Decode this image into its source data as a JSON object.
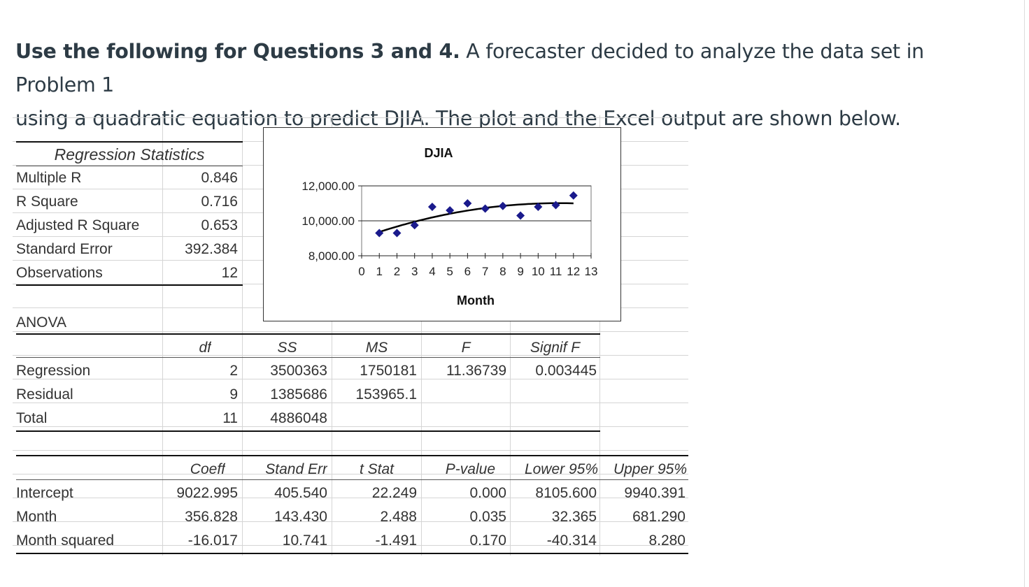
{
  "intro": {
    "bold": "Use the following for Questions 3 and 4.",
    "line1_rest": " A forecaster decided to analyze the data set in Problem 1",
    "line2": "using a quadratic equation to predict DJIA. The plot and the Excel output are shown below."
  },
  "regression_statistics": {
    "title": "Regression Statistics",
    "rows": [
      {
        "label": "Multiple R",
        "value": "0.846"
      },
      {
        "label": "R Square",
        "value": "0.716"
      },
      {
        "label": "Adjusted R Square",
        "value": "0.653"
      },
      {
        "label": "Standard Error",
        "value": "392.384"
      },
      {
        "label": "Observations",
        "value": "12"
      }
    ]
  },
  "anova": {
    "title": "ANOVA",
    "headers": [
      "df",
      "SS",
      "MS",
      "F",
      "Signif F"
    ],
    "rows": [
      {
        "label": "Regression",
        "df": "2",
        "ss": "3500363",
        "ms": "1750181",
        "f": "11.36739",
        "signif": "0.003445"
      },
      {
        "label": "Residual",
        "df": "9",
        "ss": "1385686",
        "ms": "153965.1",
        "f": "",
        "signif": ""
      },
      {
        "label": "Total",
        "df": "11",
        "ss": "4886048",
        "ms": "",
        "f": "",
        "signif": ""
      }
    ]
  },
  "coefficients": {
    "headers": [
      "Coeff",
      "Stand Err",
      "t Stat",
      "P-value",
      "Lower 95%",
      "Upper 95%"
    ],
    "rows": [
      {
        "label": "Intercept",
        "coeff": "9022.995",
        "se": "405.540",
        "t": "22.249",
        "p": "0.000",
        "lower": "8105.600",
        "upper": "9940.391"
      },
      {
        "label": "Month",
        "coeff": "356.828",
        "se": "143.430",
        "t": "2.488",
        "p": "0.035",
        "lower": "32.365",
        "upper": "681.290"
      },
      {
        "label": "Month squared",
        "coeff": "-16.017",
        "se": "10.741",
        "t": "-1.491",
        "p": "0.170",
        "lower": "-40.314",
        "upper": "8.280"
      }
    ]
  },
  "chart_data": {
    "type": "scatter",
    "title": "DJIA",
    "xlabel": "Month",
    "ylabel": "",
    "x_ticks": [
      0,
      1,
      2,
      3,
      4,
      5,
      6,
      7,
      8,
      9,
      10,
      11,
      12,
      13
    ],
    "y_ticks": [
      "8,000.00",
      "10,000.00",
      "12,000.00"
    ],
    "xlim": [
      0,
      13
    ],
    "ylim": [
      8000,
      12000
    ],
    "points": [
      {
        "x": 1,
        "y": 9300
      },
      {
        "x": 2,
        "y": 9300
      },
      {
        "x": 3,
        "y": 9750
      },
      {
        "x": 4,
        "y": 10800
      },
      {
        "x": 5,
        "y": 10600
      },
      {
        "x": 6,
        "y": 11000
      },
      {
        "x": 7,
        "y": 10700
      },
      {
        "x": 8,
        "y": 10850
      },
      {
        "x": 9,
        "y": 10300
      },
      {
        "x": 10,
        "y": 10800
      },
      {
        "x": 11,
        "y": 10900
      },
      {
        "x": 12,
        "y": 11450
      }
    ],
    "trendline": {
      "intercept": 9022.995,
      "b1": 356.828,
      "b2": -16.017
    },
    "marker_color": "#1a1a8c",
    "line_color": "#000000"
  }
}
